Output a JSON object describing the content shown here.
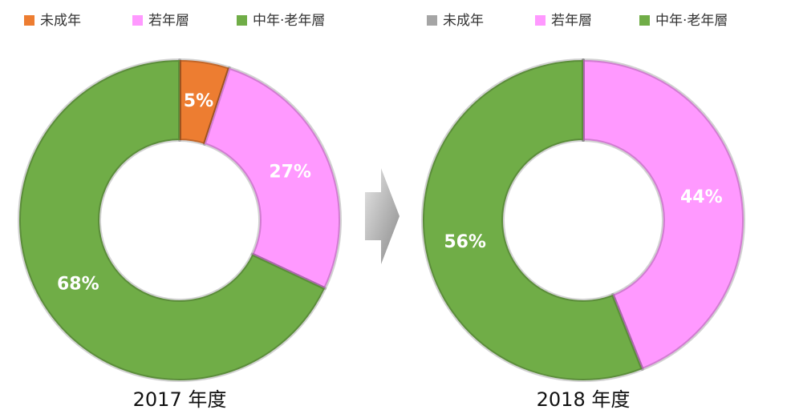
{
  "chart_data": [
    {
      "type": "pie",
      "title": "2017 年度",
      "categories": [
        "未成年",
        "若年層",
        "中年·老年層"
      ],
      "values": [
        5,
        27,
        68
      ],
      "value_labels": [
        "5%",
        "27%",
        "68%"
      ],
      "colors": [
        "#ed7d31",
        "#ff99ff",
        "#70ad47"
      ]
    },
    {
      "type": "pie",
      "title": "2018 年度",
      "categories": [
        "未成年",
        "若年層",
        "中年·老年層"
      ],
      "values": [
        0,
        44,
        56
      ],
      "value_labels": [
        null,
        "44%",
        "56%"
      ],
      "colors": [
        "#a5a5a5",
        "#ff99ff",
        "#70ad47"
      ]
    }
  ]
}
